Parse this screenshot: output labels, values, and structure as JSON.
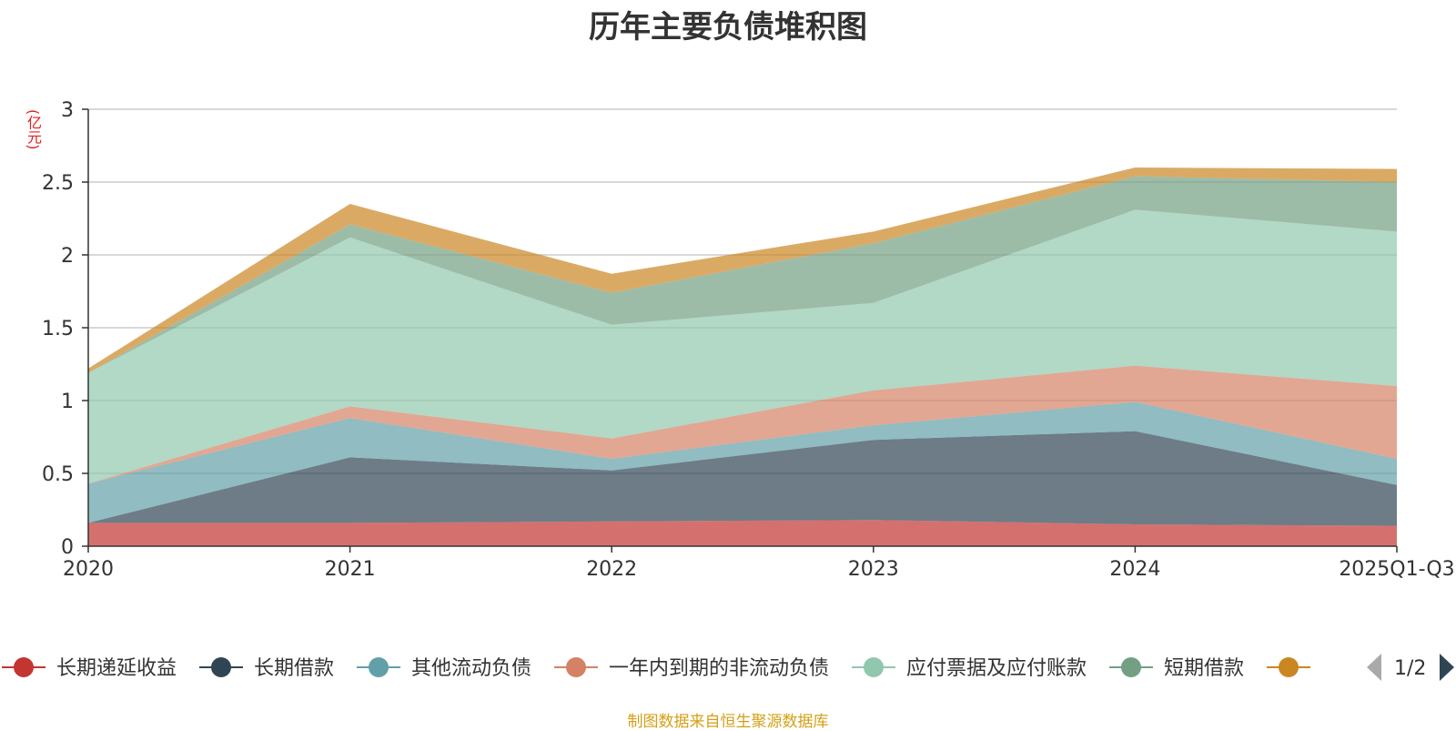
{
  "chart_data": {
    "type": "area",
    "title": "历年主要负债堆积图",
    "ylabel": "(亿元)",
    "xlabel": "",
    "categories": [
      "2020",
      "2021",
      "2022",
      "2023",
      "2024",
      "2025Q1-Q3"
    ],
    "ylim": [
      0,
      3
    ],
    "yticks": [
      "0",
      "0.5",
      "1",
      "1.5",
      "2",
      "2.5",
      "3"
    ],
    "stacked": true,
    "series": [
      {
        "name": "长期递延收益",
        "color": "#c23531",
        "values": [
          0.16,
          0.16,
          0.17,
          0.18,
          0.15,
          0.14
        ]
      },
      {
        "name": "长期借款",
        "color": "#2f4554",
        "values": [
          0.0,
          0.45,
          0.35,
          0.55,
          0.64,
          0.28
        ]
      },
      {
        "name": "其他流动负债",
        "color": "#61a0a8",
        "values": [
          0.27,
          0.27,
          0.08,
          0.1,
          0.2,
          0.18
        ]
      },
      {
        "name": "一年内到期的非流动负债",
        "color": "#d48265",
        "values": [
          0.0,
          0.08,
          0.14,
          0.24,
          0.25,
          0.5
        ]
      },
      {
        "name": "应付票据及应付账款",
        "color": "#91c7ae",
        "values": [
          0.76,
          1.16,
          0.78,
          0.6,
          1.07,
          1.06
        ]
      },
      {
        "name": "短期借款",
        "color": "#749f83",
        "values": [
          0.0,
          0.09,
          0.22,
          0.41,
          0.23,
          0.34
        ]
      },
      {
        "name": "",
        "color": "#ca8622",
        "values": [
          0.03,
          0.14,
          0.13,
          0.08,
          0.06,
          0.09
        ]
      }
    ],
    "legend_position": "bottom",
    "legend_page": "1/2"
  },
  "source_note": "制图数据来自恒生聚源数据库"
}
